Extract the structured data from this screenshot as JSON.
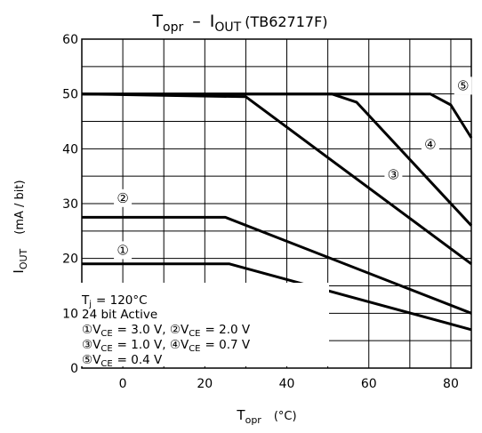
{
  "chart_data": {
    "type": "line",
    "title": {
      "main": "T",
      "main_sub": "opr",
      "sep": "–",
      "y": "I",
      "y_sub": "OUT",
      "model": "(TB62717F)"
    },
    "xlabel": {
      "main": "T",
      "sub": "opr",
      "unit": "(°C)"
    },
    "ylabel": {
      "main": "I",
      "sub": "OUT",
      "unit": "(mA / bit)"
    },
    "xlim": [
      -10,
      85
    ],
    "ylim": [
      0,
      60
    ],
    "x_ticks": [
      0,
      20,
      40,
      60,
      80
    ],
    "y_ticks": [
      0,
      10,
      20,
      30,
      40,
      50,
      60
    ],
    "grid": true,
    "series": [
      {
        "marker": "①",
        "label_pos": [
          0,
          21.5
        ],
        "x": [
          -10,
          26,
          85
        ],
        "y": [
          19,
          19,
          7
        ]
      },
      {
        "marker": "②",
        "label_pos": [
          0,
          31
        ],
        "x": [
          -10,
          25,
          85
        ],
        "y": [
          27.5,
          27.5,
          10
        ]
      },
      {
        "marker": "③",
        "label_pos": [
          66,
          35.3
        ],
        "x": [
          -10,
          30,
          85
        ],
        "y": [
          50,
          49.5,
          19
        ]
      },
      {
        "marker": "④",
        "label_pos": [
          75,
          40.8
        ],
        "x": [
          -10,
          51,
          57,
          85
        ],
        "y": [
          50,
          50,
          48.5,
          26
        ]
      },
      {
        "marker": "⑤",
        "label_pos": [
          83,
          51.5
        ],
        "x": [
          -10,
          75,
          80,
          85
        ],
        "y": [
          50,
          50,
          48,
          42
        ]
      }
    ],
    "annotation": {
      "tj_main": "T",
      "tj_sub": "j",
      "tj_value": "= 120°C",
      "line2": "24 bit  Active",
      "line3": [
        {
          "m": "①V",
          "s": "CE",
          "v": "= 3.0 V, "
        },
        {
          "m": "②V",
          "s": "CE",
          "v": "= 2.0 V"
        }
      ],
      "line4": [
        {
          "m": "③V",
          "s": "CE",
          "v": "= 1.0 V, "
        },
        {
          "m": "④V",
          "s": "CE",
          "v": "= 0.7 V"
        }
      ],
      "line5": [
        {
          "m": "⑤V",
          "s": "CE",
          "v": "= 0.4 V"
        }
      ]
    }
  }
}
